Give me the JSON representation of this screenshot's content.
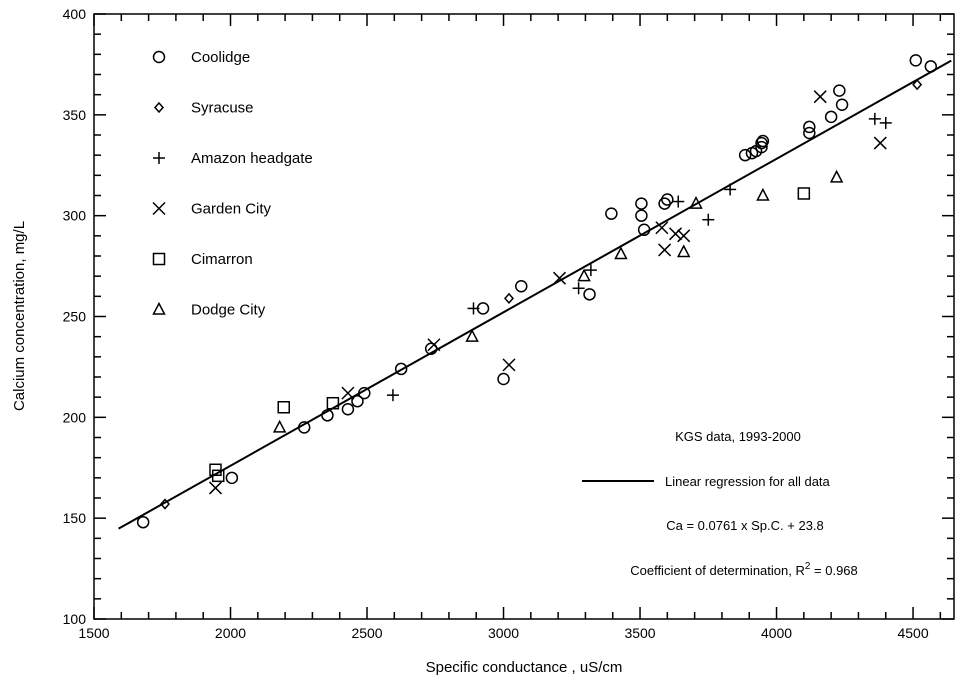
{
  "chart_data": {
    "type": "scatter",
    "title": "",
    "xlabel": "Specific conductance , uS/cm",
    "ylabel": "Calcium concentration, mg/L",
    "xlim": [
      1500,
      4650
    ],
    "ylim": [
      100,
      400
    ],
    "x_ticks": [
      1500,
      2000,
      2500,
      3000,
      3500,
      4000,
      4500
    ],
    "y_ticks": [
      100,
      150,
      200,
      250,
      300,
      350,
      400
    ],
    "legend_position": "top-left",
    "series": [
      {
        "name": "Coolidge",
        "marker": "circle",
        "points": [
          [
            1680,
            148
          ],
          [
            2005,
            170
          ],
          [
            2270,
            195
          ],
          [
            2355,
            201
          ],
          [
            2430,
            204
          ],
          [
            2465,
            208
          ],
          [
            2490,
            212
          ],
          [
            2625,
            224
          ],
          [
            2735,
            234
          ],
          [
            2925,
            254
          ],
          [
            3000,
            219
          ],
          [
            3065,
            265
          ],
          [
            3315,
            261
          ],
          [
            3395,
            301
          ],
          [
            3505,
            306
          ],
          [
            3505,
            300
          ],
          [
            3515,
            293
          ],
          [
            3590,
            306
          ],
          [
            3600,
            308
          ],
          [
            3885,
            330
          ],
          [
            3910,
            331
          ],
          [
            3925,
            332
          ],
          [
            3945,
            334
          ],
          [
            3945,
            336
          ],
          [
            3950,
            337
          ],
          [
            4120,
            344
          ],
          [
            4120,
            341
          ],
          [
            4200,
            349
          ],
          [
            4230,
            362
          ],
          [
            4240,
            355
          ],
          [
            4510,
            377
          ],
          [
            4565,
            374
          ]
        ]
      },
      {
        "name": "Syracuse",
        "marker": "diamond",
        "points": [
          [
            1760,
            157
          ],
          [
            3020,
            259
          ],
          [
            4515,
            365
          ]
        ]
      },
      {
        "name": "Amazon headgate",
        "marker": "plus",
        "points": [
          [
            2595,
            211
          ],
          [
            2890,
            254
          ],
          [
            3275,
            264
          ],
          [
            3320,
            273
          ],
          [
            3640,
            307
          ],
          [
            3750,
            298
          ],
          [
            3830,
            313
          ],
          [
            4360,
            348
          ],
          [
            4400,
            346
          ]
        ]
      },
      {
        "name": "Garden City",
        "marker": "x",
        "points": [
          [
            1945,
            165
          ],
          [
            2430,
            212
          ],
          [
            2745,
            236
          ],
          [
            3020,
            226
          ],
          [
            3205,
            269
          ],
          [
            3590,
            283
          ],
          [
            3630,
            291
          ],
          [
            3660,
            290
          ],
          [
            3580,
            294
          ],
          [
            4160,
            359
          ],
          [
            4380,
            336
          ]
        ]
      },
      {
        "name": "Cimarron",
        "marker": "square",
        "points": [
          [
            1945,
            174
          ],
          [
            1955,
            171
          ],
          [
            2195,
            205
          ],
          [
            2375,
            207
          ],
          [
            4100,
            311
          ]
        ]
      },
      {
        "name": "Dodge City",
        "marker": "triangle",
        "points": [
          [
            2180,
            195
          ],
          [
            2885,
            240
          ],
          [
            3295,
            270
          ],
          [
            3430,
            281
          ],
          [
            3660,
            282
          ],
          [
            3705,
            306
          ],
          [
            3950,
            310
          ],
          [
            4220,
            319
          ]
        ]
      }
    ],
    "regression": {
      "label": "Linear regression for all data",
      "slope": 0.0761,
      "intercept": 23.8,
      "x_range": [
        1590,
        4640
      ]
    },
    "annotations": {
      "source": "KGS data, 1993-2000",
      "equation": "Ca = 0.0761 x Sp.C. + 23.8",
      "r2_prefix": "Coefficient of determination, R",
      "r2_exponent": "2",
      "r2_suffix": " = 0.968"
    }
  }
}
